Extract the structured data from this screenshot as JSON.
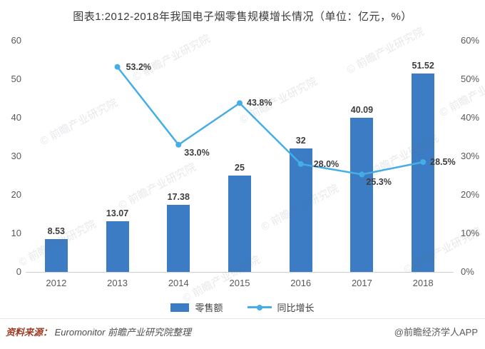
{
  "chart_data": {
    "type": "bar+line",
    "title": "图表1:2012-2018年我国电子烟零售规模增长情况（单位：亿元，%）",
    "categories": [
      "2012",
      "2013",
      "2014",
      "2015",
      "2016",
      "2017",
      "2018"
    ],
    "series": [
      {
        "name": "零售额",
        "type": "bar",
        "axis": "left",
        "color": "#3b7cc4",
        "values": [
          8.53,
          13.07,
          17.38,
          25,
          32,
          40.09,
          51.52
        ]
      },
      {
        "name": "同比增长",
        "type": "line",
        "axis": "right",
        "color": "#45aee6",
        "values": [
          null,
          53.2,
          33.0,
          43.8,
          28.0,
          25.3,
          28.5
        ],
        "labels": [
          null,
          "53.2%",
          "33.0%",
          "43.8%",
          "28.0%",
          "25.3%",
          "28.5%"
        ]
      }
    ],
    "bar_labels": [
      "8.53",
      "13.07",
      "17.38",
      "25",
      "32",
      "40.09",
      "51.52"
    ],
    "left_axis": {
      "min": 0,
      "max": 60,
      "step": 10,
      "ticks": [
        "0",
        "10",
        "20",
        "30",
        "40",
        "50",
        "60"
      ]
    },
    "right_axis": {
      "min": 0,
      "max": 60,
      "step": 10,
      "ticks": [
        "0%",
        "10%",
        "20%",
        "30%",
        "40%",
        "50%",
        "60%"
      ]
    },
    "legend": [
      {
        "label": "零售额",
        "type": "bar"
      },
      {
        "label": "同比增长",
        "type": "line"
      }
    ],
    "grid": false,
    "legend_position": "bottom"
  },
  "footer": {
    "source_label": "资料来源：",
    "source_text": "Euromonitor  前瞻产业研究院整理",
    "credit": "@前瞻经济学人APP"
  },
  "watermark": {
    "symbol": "©",
    "text": "前瞻产业研究院"
  }
}
